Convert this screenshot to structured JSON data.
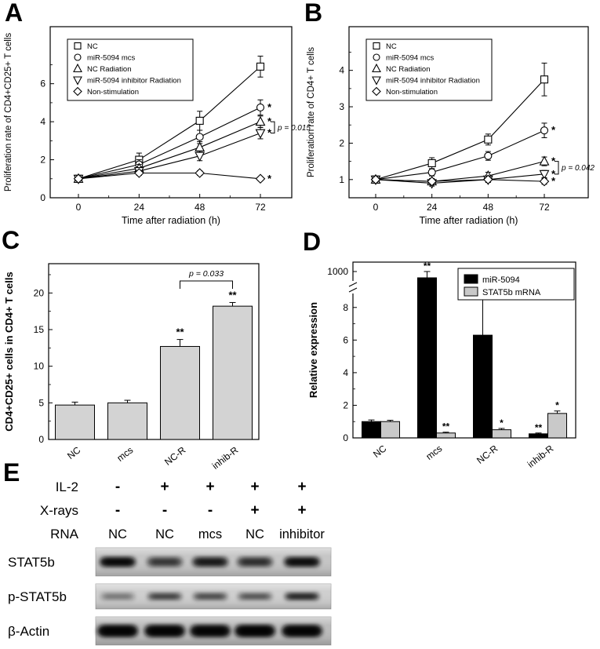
{
  "panels": {
    "A": {
      "label": "A"
    },
    "B": {
      "label": "B"
    },
    "C": {
      "label": "C"
    },
    "D": {
      "label": "D"
    },
    "E": {
      "label": "E"
    }
  },
  "chart_data": [
    {
      "id": "A",
      "type": "line",
      "xlabel": "Time after radiation (h)",
      "ylabel": "Proliferation rate of CD4+CD25+ T cells",
      "x": [
        0,
        24,
        48,
        72
      ],
      "xminor": [
        12,
        36,
        60
      ],
      "ylim": [
        0,
        9
      ],
      "yticks": [
        0,
        2,
        4,
        6
      ],
      "yminor": [
        1,
        3,
        5,
        7
      ],
      "legend_position": "top-left",
      "series": [
        {
          "name": "NC",
          "marker": "square",
          "values": [
            1.0,
            2.0,
            4.05,
            6.9
          ],
          "errors": [
            0.1,
            0.35,
            0.5,
            0.55
          ],
          "star": ""
        },
        {
          "name": "miR-5094 mcs",
          "marker": "circle",
          "values": [
            1.0,
            1.75,
            3.2,
            4.75
          ],
          "errors": [
            0.1,
            0.25,
            0.35,
            0.4
          ],
          "star": "*"
        },
        {
          "name": "NC Radiation",
          "marker": "triangle-up",
          "values": [
            1.0,
            1.55,
            2.65,
            4.0
          ],
          "errors": [
            0.1,
            0.2,
            0.3,
            0.3
          ],
          "star": "*"
        },
        {
          "name": "miR-5094 inhibitor Radiation",
          "marker": "triangle-down",
          "values": [
            1.0,
            1.4,
            2.2,
            3.4
          ],
          "errors": [
            0.1,
            0.15,
            0.25,
            0.3
          ],
          "star": "*"
        },
        {
          "name": "Non-stimulation",
          "marker": "diamond",
          "values": [
            1.0,
            1.3,
            1.3,
            1.0
          ],
          "errors": [
            0.08,
            0.12,
            0.12,
            0.1
          ],
          "star": "*"
        }
      ],
      "bracket": {
        "series_from": 2,
        "series_to": 3,
        "label": "p = 0.015"
      }
    },
    {
      "id": "B",
      "type": "line",
      "xlabel": "Time after radiation (h)",
      "ylabel": "Proliferation rate of CD4+ T cells",
      "x": [
        0,
        24,
        48,
        72
      ],
      "xminor": [
        12,
        36,
        60
      ],
      "ylim": [
        0.5,
        5.2
      ],
      "yticks": [
        1,
        2,
        3,
        4
      ],
      "yminor": [
        0.5,
        1.5,
        2.5,
        3.5,
        4.5
      ],
      "legend_position": "top-left",
      "series": [
        {
          "name": "NC",
          "marker": "square",
          "values": [
            1.0,
            1.45,
            2.1,
            3.75
          ],
          "errors": [
            0.05,
            0.15,
            0.15,
            0.45
          ],
          "star": ""
        },
        {
          "name": "miR-5094 mcs",
          "marker": "circle",
          "values": [
            1.0,
            1.2,
            1.65,
            2.35
          ],
          "errors": [
            0.05,
            0.1,
            0.12,
            0.2
          ],
          "star": "*"
        },
        {
          "name": "NC Radiation",
          "marker": "triangle-up",
          "values": [
            1.0,
            0.95,
            1.1,
            1.5
          ],
          "errors": [
            0.05,
            0.08,
            0.1,
            0.12
          ],
          "star": "*"
        },
        {
          "name": "miR-5094 inhibitor Radiation",
          "marker": "triangle-down",
          "values": [
            1.0,
            0.9,
            1.0,
            1.15
          ],
          "errors": [
            0.05,
            0.08,
            0.08,
            0.1
          ],
          "star": "*"
        },
        {
          "name": "Non-stimulation",
          "marker": "diamond",
          "values": [
            1.0,
            0.95,
            1.0,
            0.95
          ],
          "errors": [
            0.05,
            0.06,
            0.06,
            0.08
          ],
          "star": "*"
        }
      ],
      "bracket": {
        "series_from": 2,
        "series_to": 3,
        "label": "p = 0.042"
      }
    },
    {
      "id": "C",
      "type": "bar",
      "ylabel": "CD4+CD25+ cells in CD4+ T cells",
      "categories": [
        "NC",
        "mcs",
        "NC-R",
        "inhib-R"
      ],
      "values": [
        4.7,
        5.0,
        12.7,
        18.2
      ],
      "errors": [
        0.4,
        0.35,
        0.95,
        0.5
      ],
      "stars": [
        "",
        "",
        "**",
        "**"
      ],
      "ylim": [
        0,
        24
      ],
      "yticks": [
        0,
        5,
        10,
        15,
        20
      ],
      "yminor": [
        2.5,
        7.5,
        12.5,
        17.5,
        22.5
      ],
      "bar_color": "#d3d3d3",
      "bracket": {
        "from": 2,
        "to": 3,
        "label": "p = 0.033"
      }
    },
    {
      "id": "D",
      "type": "grouped-bar-broken-axis",
      "ylabel": "Relative expression",
      "categories": [
        "NC",
        "mcs",
        "NC-R",
        "inhib-R"
      ],
      "ylim_lower": [
        0,
        9
      ],
      "yticks_lower": [
        0,
        2,
        4,
        6,
        8
      ],
      "yminor_lower": [
        1,
        3,
        5,
        7
      ],
      "ytick_upper": 1000,
      "axis_break": true,
      "legend_position": "top-right",
      "series": [
        {
          "name": "miR-5094",
          "color": "#000000",
          "values": [
            1.0,
            950,
            6.3,
            0.25
          ],
          "errors": [
            0.1,
            50,
            2.2,
            0.05
          ],
          "stars": [
            "",
            "**",
            "",
            "**"
          ]
        },
        {
          "name": "STAT5b mRNA",
          "color": "#c9c9c9",
          "values": [
            1.0,
            0.3,
            0.5,
            1.5
          ],
          "errors": [
            0.08,
            0.05,
            0.08,
            0.15
          ],
          "stars": [
            "",
            "**",
            "*",
            "*"
          ]
        }
      ]
    }
  ],
  "panel_e": {
    "label": "E",
    "rows": [
      {
        "name": "IL-2",
        "values": [
          "-",
          "+",
          "+",
          "+",
          "+"
        ]
      },
      {
        "name": "X-rays",
        "values": [
          "-",
          "-",
          "-",
          "+",
          "+"
        ]
      },
      {
        "name": "RNA",
        "values": [
          "NC",
          "NC",
          "mcs",
          "NC",
          "inhibitor"
        ]
      }
    ],
    "blots": [
      {
        "name": "STAT5b",
        "bg": "#c6c6c6",
        "band_width": 46,
        "band_height": 12,
        "band_opacity": [
          0.9,
          0.55,
          0.75,
          0.6,
          0.85
        ]
      },
      {
        "name": "p-STAT5b",
        "bg": "#cfcfcf",
        "band_width": 44,
        "band_height": 9,
        "band_opacity": [
          0.3,
          0.55,
          0.5,
          0.45,
          0.72
        ]
      },
      {
        "name": "β-Actin",
        "bg": "#bcbcbc",
        "band_width": 52,
        "band_height": 15,
        "band_opacity": [
          0.96,
          0.96,
          0.93,
          0.97,
          0.95
        ]
      }
    ]
  }
}
